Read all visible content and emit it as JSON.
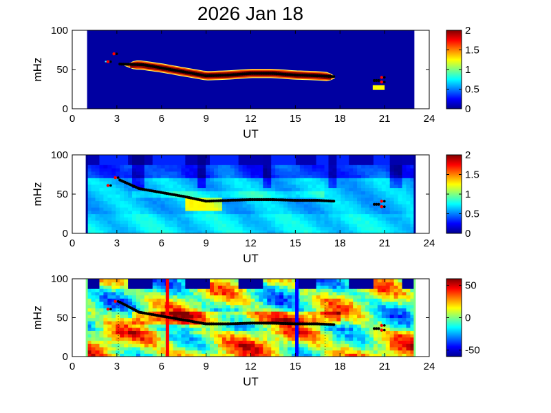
{
  "title": "2026 Jan 18",
  "colormap": {
    "stops": [
      "#00008f",
      "#0000ff",
      "#0080ff",
      "#00ffff",
      "#80ff80",
      "#ffff00",
      "#ff8000",
      "#ff0000",
      "#800000"
    ]
  },
  "chart_data": [
    {
      "type": "heatmap",
      "panel": "top",
      "xlabel": "UT",
      "ylabel": "mHz",
      "xlim": [
        0,
        24
      ],
      "ylim": [
        0,
        100
      ],
      "xticks": [
        0,
        3,
        6,
        9,
        12,
        15,
        18,
        21,
        24
      ],
      "yticks": [
        0,
        50,
        100
      ],
      "data_span": [
        1,
        23
      ],
      "background_value": 0,
      "colorbar": {
        "min": 0,
        "max": 2,
        "ticks": [
          "0",
          "0.5",
          "1",
          "1.5",
          "2"
        ]
      },
      "band": {
        "x": [
          3.6,
          4.5,
          6,
          7.5,
          9,
          10.5,
          12,
          13.5,
          15,
          16.5,
          17.7
        ],
        "y": [
          55,
          56,
          52,
          47,
          42,
          43,
          45,
          45,
          43,
          42,
          40
        ],
        "half_width": 5
      },
      "black_markers": {
        "x": [
          3.2,
          4.8,
          6,
          7.5,
          9,
          10.5,
          12,
          13.5,
          15,
          16.5,
          17.6,
          20.3
        ],
        "y": [
          57,
          56,
          52,
          47,
          42,
          43,
          45,
          45,
          43,
          42,
          41,
          36
        ]
      },
      "red_markers": {
        "x": [
          2.4,
          2.8,
          20.8,
          20.8
        ],
        "y": [
          60,
          70,
          40,
          34
        ]
      }
    },
    {
      "type": "heatmap",
      "panel": "middle",
      "xlabel": "UT",
      "ylabel": "mHz",
      "xlim": [
        0,
        24
      ],
      "ylim": [
        0,
        100
      ],
      "xticks": [
        0,
        3,
        6,
        9,
        12,
        15,
        18,
        21,
        24
      ],
      "yticks": [
        0,
        50,
        100
      ],
      "data_span": [
        1,
        23
      ],
      "colorbar": {
        "min": 0,
        "max": 2,
        "ticks": [
          "0",
          "0.5",
          "1",
          "1.5",
          "2"
        ]
      },
      "black_markers": {
        "x": [
          3.2,
          4.5,
          6,
          7.5,
          9,
          10.5,
          12,
          13.5,
          15,
          16.5,
          17.6,
          20.3
        ],
        "y": [
          68,
          57,
          52,
          47,
          41,
          42,
          43,
          43,
          42,
          42,
          41,
          37
        ]
      },
      "red_markers": {
        "x": [
          2.4,
          2.9,
          20.8,
          20.8
        ],
        "y": [
          61,
          71,
          41,
          34
        ]
      }
    },
    {
      "type": "heatmap",
      "panel": "bottom",
      "xlabel": "UT",
      "ylabel": "mHz",
      "xlim": [
        0,
        24
      ],
      "ylim": [
        0,
        100
      ],
      "xticks": [
        0,
        3,
        6,
        9,
        12,
        15,
        18,
        21,
        24
      ],
      "yticks": [
        0,
        50,
        100
      ],
      "data_span": [
        1,
        23
      ],
      "colorbar": {
        "min": -60,
        "max": 60,
        "ticks": [
          "50",
          "0",
          "-50"
        ],
        "tick_values": [
          50,
          0,
          -50
        ]
      },
      "vertical_lines": [
        {
          "x": 6.4,
          "color": "#ff0000"
        },
        {
          "x": 15.1,
          "color": "#0000ff"
        }
      ],
      "dotted_lines": [
        3.1,
        17.0
      ],
      "black_markers": {
        "x": [
          3.2,
          4.5,
          6,
          7.5,
          9,
          10.5,
          12,
          13.5,
          15,
          16.5,
          17.6,
          20.3
        ],
        "y": [
          70,
          57,
          52,
          47,
          42,
          42,
          43,
          43,
          42,
          42,
          41,
          36
        ]
      },
      "red_markers": {
        "x": [
          2.4,
          2.9,
          20.8,
          20.8
        ],
        "y": [
          61,
          71,
          40,
          34
        ]
      }
    }
  ]
}
